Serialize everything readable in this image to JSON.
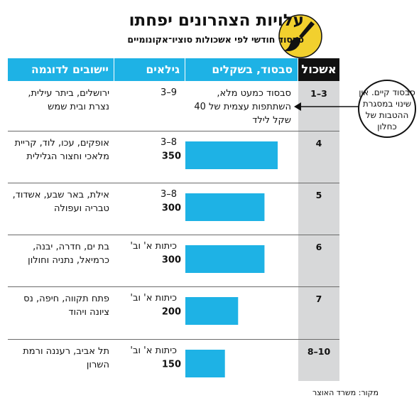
{
  "header": {
    "title": "עלויות הצהרונים יפחתו",
    "subtitle": "סבסוד חודשי לפי אשכולות סוציו־אקונומיים"
  },
  "table": {
    "columns": {
      "cluster": "אשכול",
      "subsidy": "סבסוד, בשקלים",
      "grades": "גילאים",
      "towns": "יישובים לדוגמה"
    },
    "rows": [
      {
        "cluster": "3–1",
        "note": "סבסוד כמעט מלא, השתתפות עצמית של 40 שקל לילד",
        "grades": "9–3",
        "towns": "ירושלים, ביתר עילית, נצרת ובית שמש"
      },
      {
        "cluster": "4",
        "note": "",
        "grades": "8–3",
        "towns": "אופקים, עכו, לוד, קריית מלאכי וחצור הגלילית"
      },
      {
        "cluster": "5",
        "note": "",
        "grades": "8–3",
        "towns": "אילת, באר שבע, אשדוד, טבריה ועפולה"
      },
      {
        "cluster": "6",
        "note": "",
        "grades": "כיתות א' וב'",
        "towns": "בת ים, חדרה, יבנה, כרמיאל, נתניה וחולון"
      },
      {
        "cluster": "7",
        "note": "",
        "grades": "כיתות א' וב'",
        "towns": "פתח תקווה, חיפה, נס ציונה ויהוד"
      },
      {
        "cluster": "10–8",
        "note": "",
        "grades": "כיתות א' וב'",
        "towns": "תל אביב, רעננה ורמת השרון"
      }
    ]
  },
  "callout": {
    "text": "סבסוד קיים. אין שינוי במסגרת ההטבות של כחלון"
  },
  "source": "מקור: משרד האוצר",
  "colors": {
    "accent": "#1eb2e5",
    "bar": "#1eb2e5",
    "cluster_bg": "#d7d8d9",
    "logo": "#f2d02e"
  },
  "chart_data": {
    "type": "bar",
    "orientation": "horizontal",
    "categories": [
      "4",
      "5",
      "6",
      "7",
      "10–8"
    ],
    "values": [
      350,
      300,
      300,
      200,
      150
    ],
    "ylabel": "סבסוד, בשקלים"
  }
}
